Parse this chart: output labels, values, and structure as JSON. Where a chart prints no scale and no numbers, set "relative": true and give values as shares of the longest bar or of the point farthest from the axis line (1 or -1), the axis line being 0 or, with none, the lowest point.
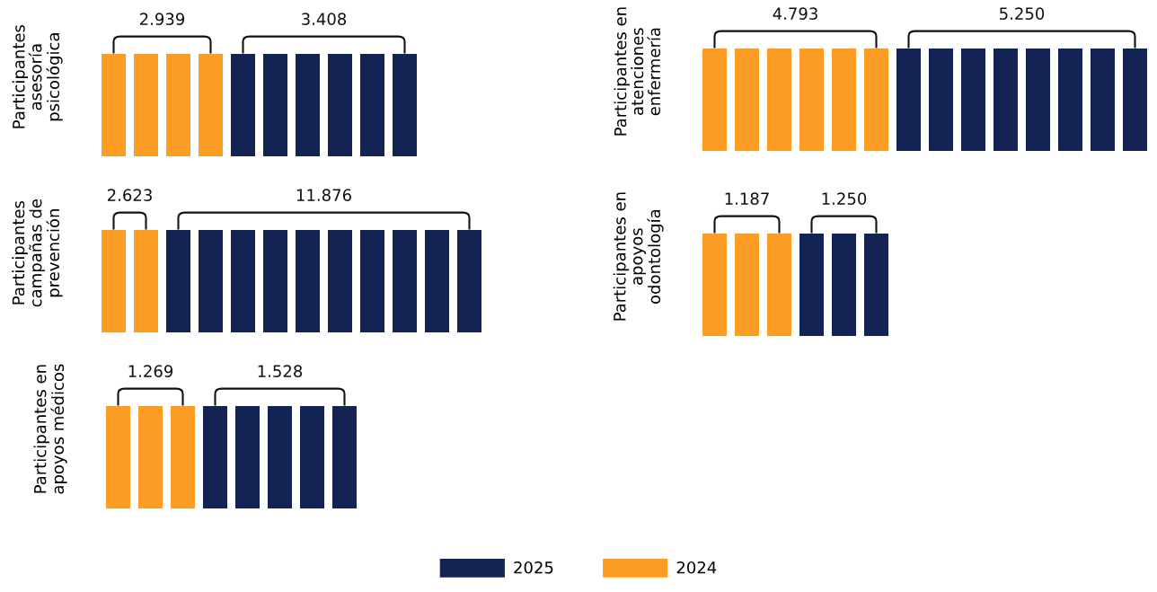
{
  "chart_data": [
    {
      "type": "bar",
      "relative": true,
      "stacked": true,
      "ylabel": "Participantes\nasesoría\npsicológica",
      "categories": [
        null,
        null,
        null,
        null,
        null,
        null,
        null,
        null,
        null,
        null
      ],
      "tick_labels": false,
      "legend": "bottom",
      "series": [
        {
          "name": "2025",
          "color": "#132353",
          "values": [
            0,
            0,
            0,
            0,
            1,
            1,
            1,
            1,
            1,
            1
          ]
        },
        {
          "name": "2024",
          "color": "#fc9c24",
          "values": [
            1,
            1,
            1,
            1,
            0,
            0,
            0,
            0,
            0,
            0
          ]
        }
      ],
      "annotations": [
        "2.939",
        "3.408"
      ]
    },
    {
      "type": "bar",
      "relative": true,
      "stacked": true,
      "ylabel": "Participantes en\natenciones\nenfermería",
      "categories": [
        null,
        null,
        null,
        null,
        null,
        null,
        null,
        null,
        null,
        null,
        null,
        null,
        null,
        null
      ],
      "tick_labels": false,
      "series": [
        {
          "name": "2025",
          "color": "#132353",
          "values": [
            0,
            0,
            0,
            0,
            0,
            0,
            1,
            1,
            1,
            1,
            1,
            1,
            1,
            1
          ]
        },
        {
          "name": "2024",
          "color": "#fc9c24",
          "values": [
            1,
            1,
            1,
            1,
            1,
            1,
            0,
            0,
            0,
            0,
            0,
            0,
            0,
            0
          ]
        }
      ],
      "annotations": [
        "4.793",
        "5.250"
      ]
    },
    {
      "type": "bar",
      "relative": true,
      "stacked": true,
      "ylabel": "Participantes\ncampañas de\nprevención",
      "categories": [
        null,
        null,
        null,
        null,
        null,
        null,
        null,
        null,
        null,
        null,
        null,
        null
      ],
      "tick_labels": false,
      "series": [
        {
          "name": "2025",
          "color": "#132353",
          "values": [
            0,
            0,
            1,
            1,
            1,
            1,
            1,
            1,
            1,
            1,
            1,
            1
          ]
        },
        {
          "name": "2024",
          "color": "#fc9c24",
          "values": [
            1,
            1,
            0,
            0,
            0,
            0,
            0,
            0,
            0,
            0,
            0,
            0
          ]
        }
      ],
      "annotations": [
        "2.623",
        "11.876"
      ]
    },
    {
      "type": "bar",
      "relative": true,
      "stacked": true,
      "ylabel": "Participantes en\napoyos\nodontología",
      "categories": [
        null,
        null,
        null,
        null,
        null,
        null
      ],
      "tick_labels": false,
      "series": [
        {
          "name": "2025",
          "color": "#132353",
          "values": [
            0,
            0,
            0,
            1,
            1,
            1
          ]
        },
        {
          "name": "2024",
          "color": "#fc9c24",
          "values": [
            1,
            1,
            1,
            0,
            0,
            0
          ]
        }
      ],
      "annotations": [
        "1.187",
        "1.250"
      ]
    },
    {
      "type": "bar",
      "relative": true,
      "stacked": true,
      "ylabel": "Participantes en\napoyos médicos",
      "categories": [
        null,
        null,
        null,
        null,
        null,
        null,
        null,
        null
      ],
      "tick_labels": false,
      "series": [
        {
          "name": "2025",
          "color": "#132353",
          "values": [
            0,
            0,
            0,
            1,
            1,
            1,
            1,
            1
          ]
        },
        {
          "name": "2024",
          "color": "#fc9c24",
          "values": [
            1,
            1,
            1,
            0,
            0,
            0,
            0,
            0
          ]
        }
      ],
      "annotations": [
        "1.269",
        "1.528"
      ]
    }
  ]
}
